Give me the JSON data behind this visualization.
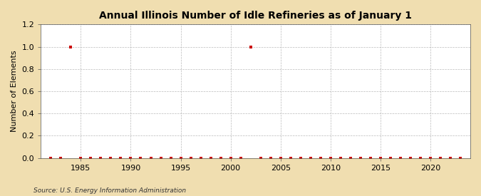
{
  "title": "Annual Illinois Number of Idle Refineries as of January 1",
  "ylabel": "Number of Elements",
  "source": "Source: U.S. Energy Information Administration",
  "figure_bg_color": "#f0deb0",
  "plot_bg_color": "#ffffff",
  "marker_color": "#cc0000",
  "grid_color": "#aaaaaa",
  "ylim": [
    0.0,
    1.2
  ],
  "yticks": [
    0.0,
    0.2,
    0.4,
    0.6,
    0.8,
    1.0,
    1.2
  ],
  "xlim": [
    1981,
    2024
  ],
  "xticks": [
    1985,
    1990,
    1995,
    2000,
    2005,
    2010,
    2015,
    2020
  ],
  "data": {
    "1982": 0,
    "1983": 0,
    "1984": 1,
    "1985": 0,
    "1986": 0,
    "1987": 0,
    "1988": 0,
    "1989": 0,
    "1990": 0,
    "1991": 0,
    "1992": 0,
    "1993": 0,
    "1994": 0,
    "1995": 0,
    "1996": 0,
    "1997": 0,
    "1998": 0,
    "1999": 0,
    "2000": 0,
    "2001": 0,
    "2002": 1,
    "2003": 0,
    "2004": 0,
    "2005": 0,
    "2006": 0,
    "2007": 0,
    "2008": 0,
    "2009": 0,
    "2010": 0,
    "2011": 0,
    "2012": 0,
    "2013": 0,
    "2014": 0,
    "2015": 0,
    "2016": 0,
    "2017": 0,
    "2018": 0,
    "2019": 0,
    "2020": 0,
    "2021": 0,
    "2022": 0,
    "2023": 0
  }
}
